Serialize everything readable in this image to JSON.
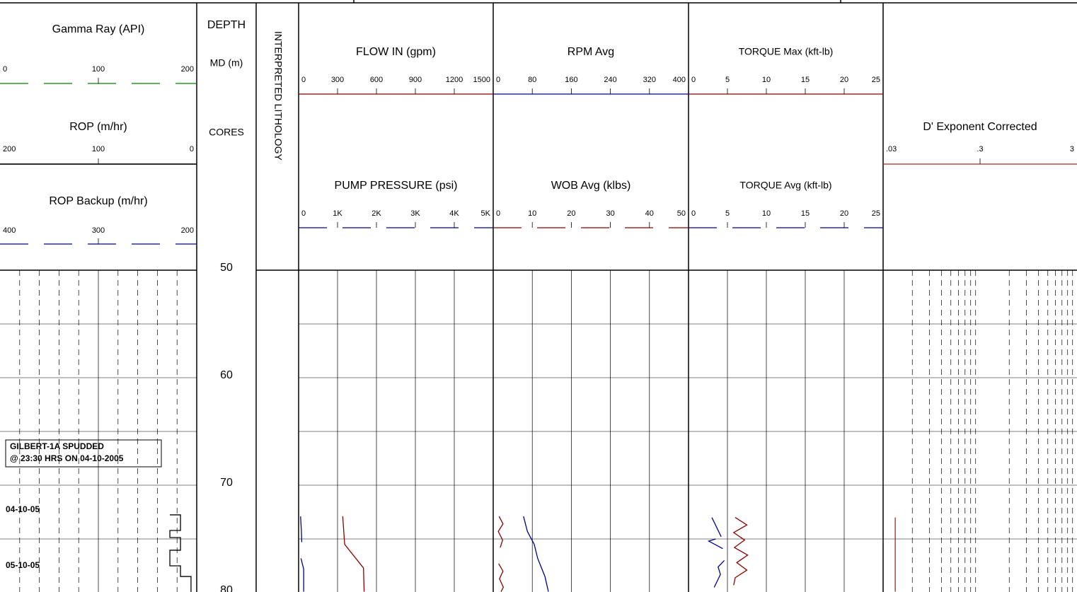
{
  "depth": {
    "title": "DEPTH",
    "unit": "MD (m)",
    "cores": "CORES",
    "ylim": [
      50,
      80
    ],
    "ticks": [
      50,
      60,
      70,
      80
    ]
  },
  "lithology": "INTERPRETED LITHOLOGY",
  "annotations": {
    "spud": [
      "GILBERT-1A SPUDDED",
      "@ 23:30 HRS ON 04-10-2005"
    ],
    "dates": [
      {
        "label": "04-10-05",
        "depth": 72.3
      },
      {
        "label": "05-10-05",
        "depth": 77.5
      }
    ]
  },
  "tracks": [
    {
      "headers": [
        {
          "title": "Gamma Ray (API)",
          "color": "#008000",
          "dash": true,
          "ticks": [
            0,
            100,
            200
          ]
        },
        {
          "title": "ROP (m/hr)",
          "color": "#000000",
          "dash": false,
          "ticks": [
            200,
            100,
            0
          ],
          "curve": {
            "depth": [
              72.76,
              72.76,
              74.21,
              74.21,
              74.87,
              74.87,
              76.05,
              76.05,
              77.5,
              77.5,
              78.49,
              78.49,
              79.93
            ],
            "values": [
              27.3,
              16.5,
              16.5,
              27.3,
              27.3,
              16.5,
              16.5,
              27.3,
              27.3,
              16.5,
              16.5,
              5.8,
              5.8
            ]
          }
        },
        {
          "title": "ROP Backup (m/hr)",
          "color": "#00008b",
          "dash": true,
          "ticks": [
            400,
            300,
            200
          ]
        }
      ]
    },
    {
      "headers": [
        {
          "title": "FLOW IN (gpm)",
          "color": "#8b0000",
          "dash": false,
          "ticks": [
            0,
            300,
            600,
            900,
            1200,
            1500
          ],
          "curve": {
            "depth": [
              72.9,
              75.5,
              77.7,
              79.9
            ],
            "values": [
              340,
              355,
              500,
              505
            ]
          }
        },
        {
          "title": "PUMP PRESSURE (psi)",
          "color": "#00008b",
          "dash": true,
          "ticks": [
            0,
            {
              "value": 1000,
              "label": "1K"
            },
            {
              "value": 2000,
              "label": "2K"
            },
            {
              "value": 3000,
              "label": "3K"
            },
            {
              "value": 4000,
              "label": "4K"
            },
            {
              "value": 5000,
              "label": "5K"
            }
          ],
          "curve": {
            "depth": [
              72.9,
              74.2,
              75.3,
              null,
              76.8,
              77.8,
              79.9
            ],
            "values": [
              50,
              70,
              80,
              null,
              60,
              130,
              130
            ]
          }
        }
      ]
    },
    {
      "headers": [
        {
          "title": "RPM Avg",
          "color": "#00008b",
          "dash": false,
          "ticks": [
            0,
            80,
            160,
            240,
            320,
            400
          ],
          "curve": {
            "depth": [
              72.9,
              74.3,
              75.5,
              76.8,
              78.5,
              79.9
            ],
            "values": [
              62,
              70,
              84,
              91,
              106,
              113
            ]
          }
        },
        {
          "title": "WOB Avg (klbs)",
          "color": "#8b0000",
          "dash": true,
          "ticks": [
            0,
            10,
            20,
            30,
            40,
            50
          ],
          "curve": {
            "depth": [
              72.9,
              73.6,
              74.3,
              75.1,
              75.8,
              null,
              77.3,
              78.0,
              78.7,
              79.5,
              79.9
            ],
            "values": [
              1.5,
              2.5,
              1.3,
              2.4,
              1.8,
              null,
              1.4,
              2.5,
              1.6,
              2.6,
              2.0
            ]
          }
        }
      ]
    },
    {
      "headers": [
        {
          "title": "TORQUE Max (kft-lb)",
          "color": "#8b0000",
          "dash": false,
          "small": true,
          "ticks": [
            0,
            5,
            10,
            15,
            20,
            25
          ],
          "curve": {
            "depth": [
              73.0,
              73.7,
              74.4,
              75.1,
              75.8,
              76.5,
              77.2,
              77.9,
              78.6,
              79.3
            ],
            "values": [
              6.0,
              7.5,
              5.8,
              7.2,
              5.9,
              7.6,
              6.2,
              7.5,
              6.0,
              5.8
            ]
          }
        },
        {
          "title": "TORQUE Avg (kft-lb)",
          "color": "#00008b",
          "dash": true,
          "small": true,
          "ticks": [
            0,
            5,
            10,
            15,
            20,
            25
          ],
          "curve": {
            "depth": [
              73.0,
              74.8,
              null,
              75.0,
              75.2,
              75.9,
              null,
              77.0,
              77.6,
              78.3,
              79.5
            ],
            "values": [
              3.0,
              4.2,
              null,
              3.5,
              2.6,
              4.4,
              null,
              4.6,
              3.8,
              4.1,
              3.3
            ]
          }
        }
      ]
    },
    {
      "log": true,
      "headers": [
        {
          "title": "D' Exponent Corrected",
          "color": "#a52a2a",
          "dash": false,
          "ticks": [
            {
              "value": 0.03,
              "label": ".03"
            },
            {
              "value": 0.3,
              "label": ".3"
            },
            3
          ],
          "curve": {
            "depth": [
              73.0,
              79.9
            ],
            "values": [
              0.04,
              0.04
            ]
          }
        }
      ]
    }
  ]
}
